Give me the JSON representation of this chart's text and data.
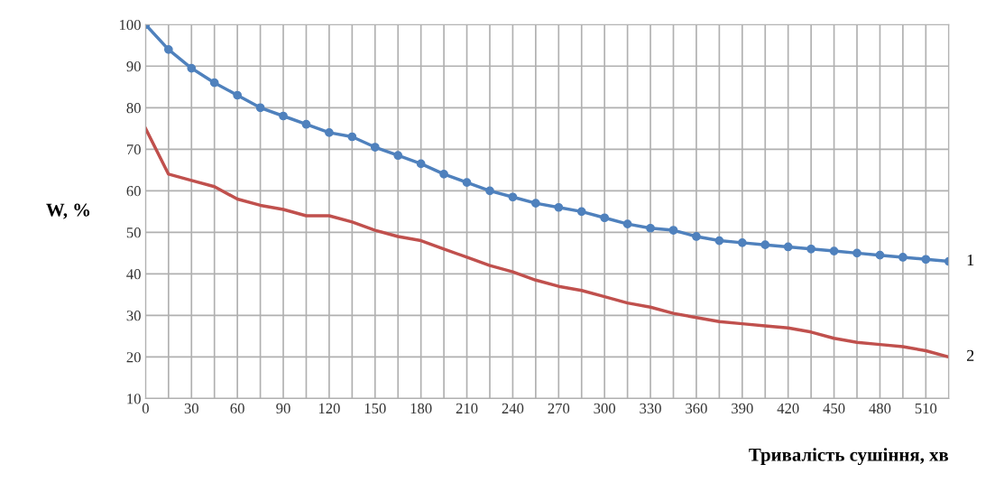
{
  "chart_data": {
    "type": "line",
    "xlabel": "Тривалість сушіння, хв",
    "ylabel": "W, %",
    "x": [
      0,
      15,
      30,
      45,
      60,
      75,
      90,
      105,
      120,
      135,
      150,
      165,
      180,
      195,
      210,
      225,
      240,
      255,
      270,
      285,
      300,
      315,
      330,
      345,
      360,
      375,
      390,
      405,
      420,
      435,
      450,
      465,
      480,
      495,
      510,
      525
    ],
    "series": [
      {
        "name": "1",
        "color": "#4f81bd",
        "marker": "circle",
        "values": [
          100,
          94,
          89.5,
          86,
          83,
          80,
          78,
          76,
          74,
          73,
          70.5,
          68.5,
          66.5,
          64,
          62,
          60,
          58.5,
          57,
          56,
          55,
          53.5,
          52,
          51,
          50.5,
          49,
          48,
          47.5,
          47,
          46.5,
          46,
          45.5,
          45,
          44.5,
          44,
          43.5,
          43
        ]
      },
      {
        "name": "2",
        "color": "#c0504d",
        "marker": "none",
        "values": [
          75,
          64,
          62.5,
          61,
          58,
          56.5,
          55.5,
          54,
          54,
          52.5,
          50.5,
          49,
          48,
          46,
          44,
          42,
          40.5,
          38.5,
          37,
          36,
          34.5,
          33,
          32,
          30.5,
          29.5,
          28.5,
          28,
          27.5,
          27,
          26,
          24.5,
          23.5,
          23,
          22.5,
          21.5,
          20
        ]
      }
    ],
    "xlim": [
      0,
      525
    ],
    "xticks": [
      0,
      {
        "value": 15,
        "label": null
      },
      30,
      {
        "value": 45,
        "label": null
      },
      60,
      {
        "value": 75,
        "label": null
      },
      90,
      {
        "value": 105,
        "label": null
      },
      120,
      {
        "value": 135,
        "label": null
      },
      150,
      {
        "value": 165,
        "label": null
      },
      180,
      {
        "value": 195,
        "label": null
      },
      210,
      {
        "value": 225,
        "label": null
      },
      240,
      {
        "value": 255,
        "label": null
      },
      270,
      {
        "value": 285,
        "label": null
      },
      300,
      {
        "value": 315,
        "label": null
      },
      330,
      {
        "value": 345,
        "label": null
      },
      360,
      {
        "value": 375,
        "label": null
      },
      390,
      {
        "value": 405,
        "label": null
      },
      420,
      {
        "value": 435,
        "label": null
      },
      450,
      {
        "value": 465,
        "label": null
      },
      480,
      {
        "value": 495,
        "label": null
      },
      510,
      {
        "value": 525,
        "label": null
      }
    ],
    "ylim": [
      10,
      100
    ],
    "yticks": [
      10,
      20,
      30,
      40,
      50,
      60,
      70,
      80,
      90,
      100
    ],
    "grid": true,
    "legend": false,
    "line_style": "solid"
  }
}
